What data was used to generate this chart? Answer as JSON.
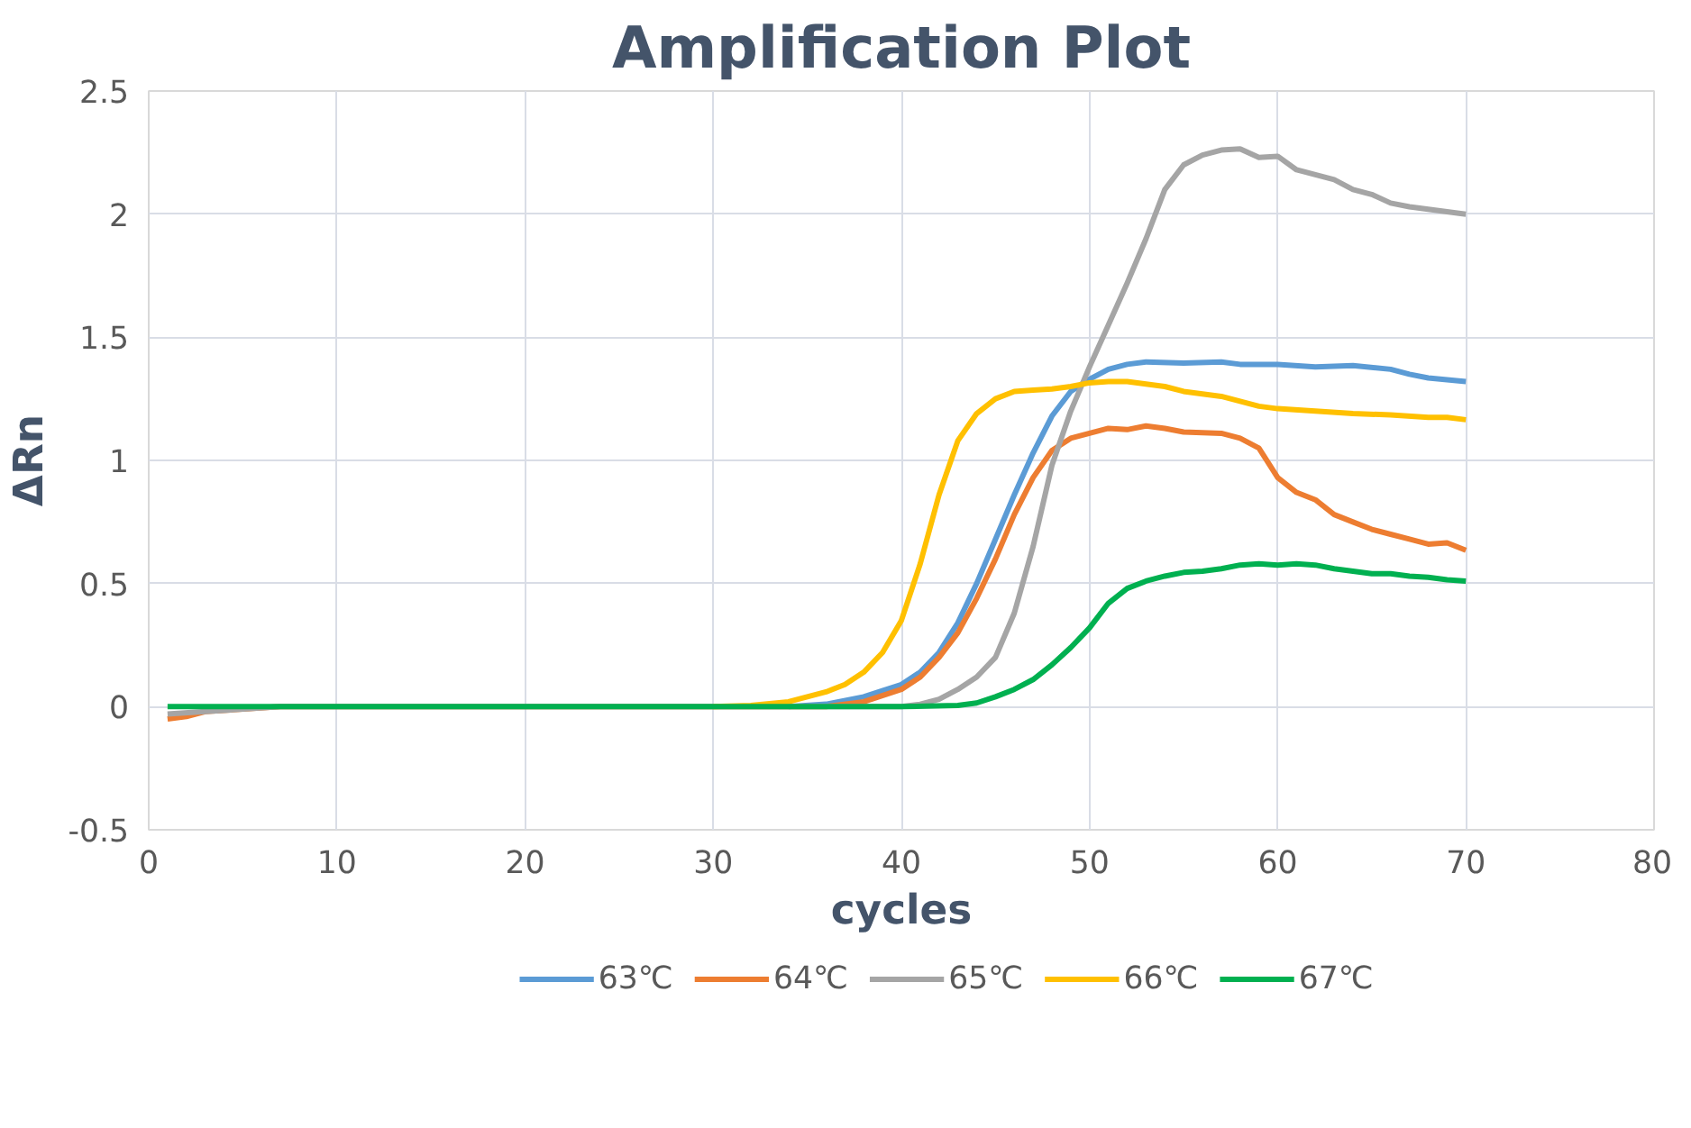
{
  "chart_data": {
    "type": "line",
    "title": "Amplification Plot",
    "xlabel": "cycles",
    "ylabel": "ΔRn",
    "xlim": [
      0,
      80
    ],
    "xticks": [
      0,
      10,
      20,
      30,
      40,
      50,
      60,
      70,
      80
    ],
    "ylim": [
      -0.5,
      2.5
    ],
    "yticks": [
      -0.5,
      0,
      0.5,
      1,
      1.5,
      2,
      2.5
    ],
    "grid": true,
    "legend": "bottom",
    "marker": "none",
    "line_style": "solid",
    "series": [
      {
        "name": "63℃",
        "color": "#5b9bd5",
        "x": [
          34,
          36,
          38,
          40,
          41,
          42,
          43,
          44,
          45,
          46,
          47,
          48,
          49,
          50,
          51,
          52,
          53,
          55,
          57,
          58,
          60,
          62,
          64,
          66,
          67,
          68,
          70
        ],
        "values": [
          0,
          0.01,
          0.04,
          0.09,
          0.14,
          0.22,
          0.34,
          0.5,
          0.68,
          0.86,
          1.03,
          1.18,
          1.28,
          1.33,
          1.37,
          1.39,
          1.4,
          1.395,
          1.4,
          1.39,
          1.39,
          1.38,
          1.385,
          1.37,
          1.35,
          1.335,
          1.32
        ]
      },
      {
        "name": "64℃",
        "color": "#ed7d31",
        "x": [
          1,
          2,
          3,
          5,
          7,
          10,
          20,
          30,
          36,
          38,
          40,
          41,
          42,
          43,
          44,
          45,
          46,
          47,
          48,
          49,
          50,
          51,
          52,
          53,
          54,
          55,
          57,
          58,
          59,
          60,
          61,
          62,
          63,
          64,
          65,
          66,
          67,
          68,
          69,
          70
        ],
        "values": [
          -0.05,
          -0.04,
          -0.02,
          -0.01,
          0,
          0,
          0,
          0,
          0,
          0.02,
          0.07,
          0.12,
          0.2,
          0.3,
          0.44,
          0.6,
          0.78,
          0.93,
          1.04,
          1.09,
          1.11,
          1.13,
          1.125,
          1.14,
          1.13,
          1.115,
          1.11,
          1.09,
          1.05,
          0.93,
          0.87,
          0.84,
          0.78,
          0.75,
          0.72,
          0.7,
          0.68,
          0.66,
          0.665,
          0.635
        ]
      },
      {
        "name": "65℃",
        "color": "#a5a5a5",
        "x": [
          1,
          3,
          5,
          7,
          10,
          20,
          30,
          40,
          41,
          42,
          43,
          44,
          45,
          46,
          47,
          48,
          49,
          50,
          51,
          52,
          53,
          54,
          55,
          56,
          57,
          58,
          59,
          60,
          61,
          62,
          63,
          64,
          65,
          66,
          67,
          68,
          69,
          70
        ],
        "values": [
          -0.03,
          -0.02,
          -0.01,
          0,
          0,
          0,
          0,
          0,
          0.01,
          0.03,
          0.07,
          0.12,
          0.2,
          0.38,
          0.65,
          0.98,
          1.2,
          1.38,
          1.55,
          1.72,
          1.9,
          2.1,
          2.2,
          2.24,
          2.26,
          2.265,
          2.23,
          2.235,
          2.18,
          2.16,
          2.14,
          2.1,
          2.08,
          2.045,
          2.03,
          2.02,
          2.01,
          2.0
        ]
      },
      {
        "name": "66℃",
        "color": "#ffc000",
        "x": [
          30,
          32,
          34,
          36,
          37,
          38,
          39,
          40,
          41,
          42,
          43,
          44,
          45,
          46,
          47,
          48,
          49,
          50,
          51,
          52,
          53,
          54,
          55,
          56,
          57,
          58,
          59,
          60,
          62,
          64,
          66,
          68,
          69,
          70
        ],
        "values": [
          0,
          0.005,
          0.02,
          0.06,
          0.09,
          0.14,
          0.22,
          0.35,
          0.58,
          0.86,
          1.08,
          1.19,
          1.25,
          1.28,
          1.285,
          1.29,
          1.3,
          1.315,
          1.32,
          1.32,
          1.31,
          1.3,
          1.28,
          1.27,
          1.26,
          1.24,
          1.22,
          1.21,
          1.2,
          1.19,
          1.185,
          1.175,
          1.175,
          1.165
        ]
      },
      {
        "name": "67℃",
        "color": "#00b050",
        "x": [
          1,
          10,
          20,
          30,
          40,
          43,
          44,
          45,
          46,
          47,
          48,
          49,
          50,
          51,
          52,
          53,
          54,
          55,
          56,
          57,
          58,
          59,
          60,
          61,
          62,
          63,
          64,
          65,
          66,
          67,
          68,
          69,
          70
        ],
        "values": [
          0,
          0,
          0,
          0,
          0,
          0.005,
          0.015,
          0.04,
          0.07,
          0.11,
          0.17,
          0.24,
          0.32,
          0.42,
          0.48,
          0.51,
          0.53,
          0.545,
          0.55,
          0.56,
          0.575,
          0.58,
          0.575,
          0.58,
          0.575,
          0.56,
          0.55,
          0.54,
          0.54,
          0.53,
          0.525,
          0.515,
          0.51
        ]
      }
    ]
  }
}
